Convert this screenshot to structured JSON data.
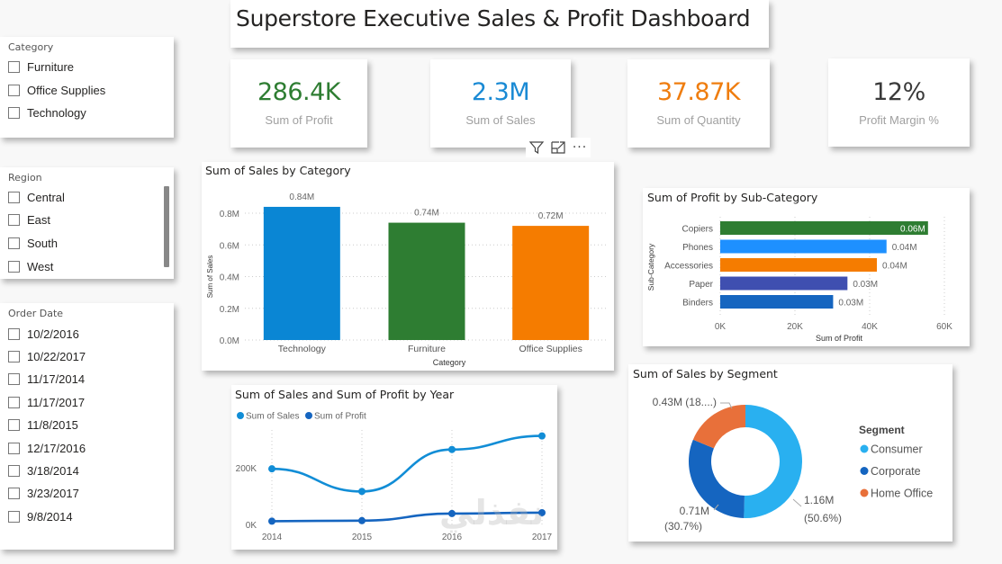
{
  "title": "Superstore Executive Sales & Profit Dashboard",
  "slicers": {
    "category": {
      "title": "Category",
      "items": [
        "Furniture",
        "Office Supplies",
        "Technology"
      ]
    },
    "region": {
      "title": "Region",
      "items": [
        "Central",
        "East",
        "South",
        "West"
      ]
    },
    "order_date": {
      "title": "Order Date",
      "items": [
        "10/2/2016",
        "10/22/2017",
        "11/17/2014",
        "11/17/2017",
        "11/8/2015",
        "12/17/2016",
        "3/18/2014",
        "3/23/2017",
        "9/8/2014"
      ]
    }
  },
  "kpis": [
    {
      "value": "286.4K",
      "label": "Sum of Profit",
      "color": "#2e7d32"
    },
    {
      "value": "2.3M",
      "label": "Sum of Sales",
      "color": "#1a8ad4"
    },
    {
      "value": "37.87K",
      "label": "Sum of Quantity",
      "color": "#ef7d0f"
    },
    {
      "value": "12%",
      "label": "Profit Margin %",
      "color": "#3a3a3a"
    }
  ],
  "visual_header": {
    "icons": [
      "filter-icon",
      "focus-mode-icon",
      "more-options-icon"
    ],
    "more_label": "···"
  },
  "watermark": "نفذلي",
  "chart_data": [
    {
      "id": "sales_by_category",
      "type": "bar",
      "title": "Sum of Sales by Category",
      "xlabel": "Category",
      "ylabel": "Sum of Sales",
      "categories": [
        "Technology",
        "Furniture",
        "Office Supplies"
      ],
      "values": [
        0.84,
        0.74,
        0.72
      ],
      "data_labels": [
        "0.84M",
        "0.74M",
        "0.72M"
      ],
      "colors": [
        "#0a86d4",
        "#2e7d32",
        "#f57c00"
      ],
      "yticks": [
        0,
        0.2,
        0.4,
        0.6,
        0.8
      ],
      "ytick_labels": [
        "0.0M",
        "0.2M",
        "0.4M",
        "0.6M",
        "0.8M"
      ],
      "ylim": [
        0,
        0.8
      ],
      "grid": true
    },
    {
      "id": "profit_by_subcategory",
      "type": "bar",
      "orientation": "horizontal",
      "title": "Sum of Profit by Sub-Category",
      "xlabel": "Sum of Profit",
      "ylabel": "Sub-Category",
      "categories": [
        "Copiers",
        "Phones",
        "Accessories",
        "Paper",
        "Binders"
      ],
      "values": [
        55618,
        44516,
        41937,
        34054,
        30222
      ],
      "data_labels": [
        "0.06M",
        "0.04M",
        "0.04M",
        "0.03M",
        "0.03M"
      ],
      "colors": [
        "#2e7d32",
        "#1e90ff",
        "#f57c00",
        "#3f4fb0",
        "#1565c0"
      ],
      "xticks": [
        0,
        20000,
        40000,
        60000
      ],
      "xtick_labels": [
        "0K",
        "20K",
        "40K",
        "60K"
      ],
      "xlim": [
        0,
        60000
      ],
      "grid": true
    },
    {
      "id": "sales_profit_by_year",
      "type": "line",
      "title": "Sum of Sales and Sum of Profit by Year",
      "x": [
        "2014",
        "2015",
        "2016",
        "2017"
      ],
      "series": [
        {
          "name": "Sum of Sales",
          "values": [
            190000,
            110000,
            258000,
            306000
          ],
          "color": "#118dd6"
        },
        {
          "name": "Sum of Profit",
          "values": [
            5000,
            7000,
            32000,
            35000
          ],
          "color": "#1565c0"
        }
      ],
      "yticks": [
        0,
        200000
      ],
      "ytick_labels": [
        "0K",
        "200K"
      ],
      "ylim": [
        0,
        330000
      ],
      "legend": "top-left",
      "grid": true
    },
    {
      "id": "sales_by_segment",
      "type": "pie",
      "donut": true,
      "title": "Sum of Sales by Segment",
      "legend_title": "Segment",
      "labels": [
        "Consumer",
        "Corporate",
        "Home Office"
      ],
      "values": [
        1.16,
        0.71,
        0.43
      ],
      "percents": [
        50.6,
        30.7,
        18.7
      ],
      "data_labels": [
        "1.16M",
        "0.71M",
        "0.43M (18....)"
      ],
      "percent_labels": [
        "(50.6%)",
        "(30.7%)",
        ""
      ],
      "colors": [
        "#29b0f0",
        "#1565c0",
        "#e8703a"
      ],
      "legend": "right"
    }
  ]
}
